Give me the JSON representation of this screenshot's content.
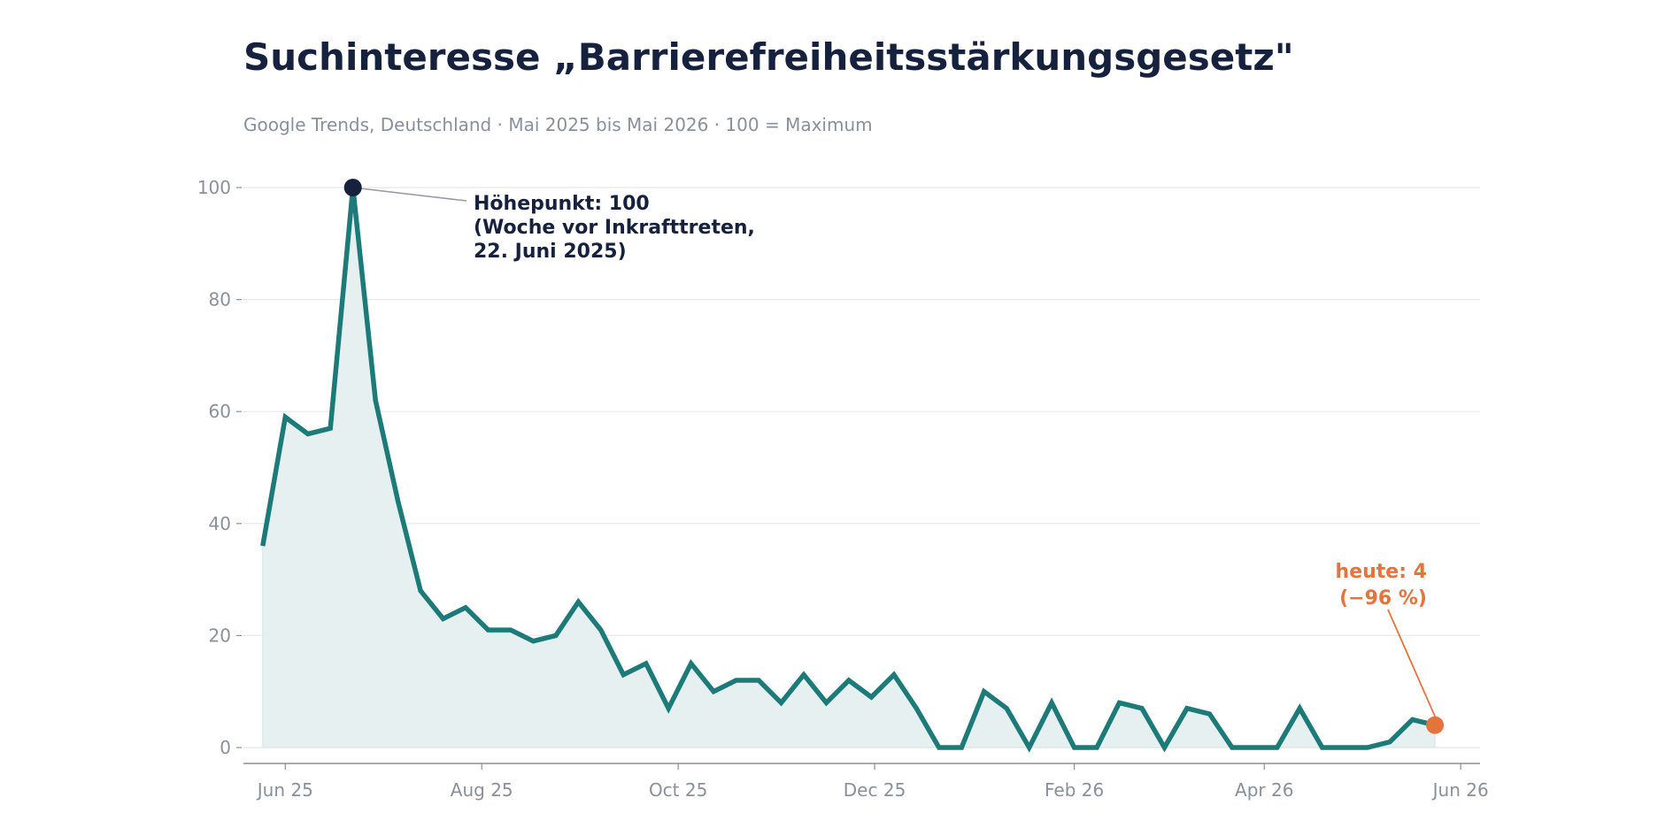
{
  "chart_data": {
    "type": "area",
    "title": "Suchinteresse „Barrierefreiheitsstärkungsgesetz\"",
    "subtitle": "Google Trends, Deutschland · Mai 2025 bis Mai 2026 · 100 = Maximum",
    "xlabel": "",
    "ylabel": "",
    "ylim": [
      0,
      100
    ],
    "yticks": [
      0,
      20,
      40,
      60,
      80,
      100
    ],
    "xlim": [
      "2025-05-19",
      "2026-06-07"
    ],
    "xticks": [
      {
        "date": "2025-06-01",
        "label": "Jun 25"
      },
      {
        "date": "2025-08-01",
        "label": "Aug 25"
      },
      {
        "date": "2025-10-01",
        "label": "Oct 25"
      },
      {
        "date": "2025-12-01",
        "label": "Dec 25"
      },
      {
        "date": "2026-02-01",
        "label": "Feb 26"
      },
      {
        "date": "2026-04-01",
        "label": "Apr 26"
      },
      {
        "date": "2026-06-01",
        "label": "Jun 26"
      }
    ],
    "grid": "horizontal",
    "legend": "none",
    "colors": {
      "line": "#1c7a78",
      "area": "#e6f0f0",
      "peak_marker": "#16213e",
      "today_marker": "#e5733e",
      "title": "#16213e",
      "muted": "#8a8f9c",
      "grid": "#e6e8ec"
    },
    "series": [
      {
        "x": [
          "2025-05-25",
          "2025-06-01",
          "2025-06-08",
          "2025-06-15",
          "2025-06-22",
          "2025-06-29",
          "2025-07-06",
          "2025-07-13",
          "2025-07-20",
          "2025-07-27",
          "2025-08-03",
          "2025-08-10",
          "2025-08-17",
          "2025-08-24",
          "2025-08-31",
          "2025-09-07",
          "2025-09-14",
          "2025-09-21",
          "2025-09-28",
          "2025-10-05",
          "2025-10-12",
          "2025-10-19",
          "2025-10-26",
          "2025-11-02",
          "2025-11-09",
          "2025-11-16",
          "2025-11-23",
          "2025-11-30",
          "2025-12-07",
          "2025-12-14",
          "2025-12-21",
          "2025-12-28",
          "2026-01-04",
          "2026-01-11",
          "2026-01-18",
          "2026-01-25",
          "2026-02-01",
          "2026-02-08",
          "2026-02-15",
          "2026-02-22",
          "2026-03-01",
          "2026-03-08",
          "2026-03-15",
          "2026-03-22",
          "2026-03-29",
          "2026-04-05",
          "2026-04-12",
          "2026-04-19",
          "2026-04-26",
          "2026-05-03",
          "2026-05-10",
          "2026-05-17",
          "2026-05-24"
        ],
        "values": [
          36,
          59,
          56,
          57,
          100,
          62,
          44,
          28,
          23,
          25,
          21,
          21,
          19,
          20,
          26,
          21,
          13,
          15,
          7,
          15,
          10,
          12,
          12,
          8,
          13,
          8,
          12,
          9,
          13,
          7,
          0,
          0,
          10,
          7,
          0,
          8,
          0,
          0,
          8,
          7,
          0,
          7,
          6,
          0,
          0,
          0,
          7,
          0,
          0,
          0,
          1,
          5,
          4
        ]
      }
    ],
    "annotations": [
      {
        "type": "peak",
        "date": "2025-06-22",
        "value": 100,
        "lines": [
          "Höhepunkt: 100",
          "(Woche vor Inkrafttreten,",
          "22. Juni 2025)"
        ]
      },
      {
        "type": "today",
        "date": "2026-05-24",
        "value": 4,
        "lines": [
          "heute: 4",
          "(−96 %)"
        ]
      }
    ]
  }
}
